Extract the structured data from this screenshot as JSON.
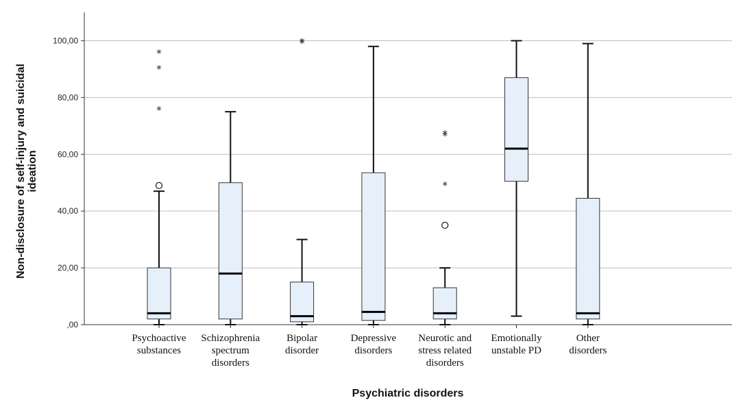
{
  "chart_data": {
    "type": "boxplot",
    "xlabel": "Psychiatric disorders",
    "ylabel": [
      "Non-disclosure of self-injury and suicidal",
      "ideation"
    ],
    "ylim": [
      0,
      110
    ],
    "yticks": [
      0,
      20,
      40,
      60,
      80,
      100
    ],
    "ytick_labels": [
      ",00",
      "20,00",
      "40,00",
      "60,00",
      "80,00",
      "100,00"
    ],
    "grid": "horizontal",
    "box_fill": "#e6f0fb",
    "box_stroke": "#333333",
    "gridline_color": "#bdbdbd",
    "categories": [
      {
        "label": [
          "Psychoactive",
          "substances"
        ],
        "whisker_low": 0,
        "q1": 2,
        "median": 4,
        "q3": 20,
        "whisker_high": 47,
        "outliers": [
          49
        ],
        "extremes": [
          76,
          90.5,
          96
        ]
      },
      {
        "label": [
          "Schizophrenia",
          "spectrum",
          "disorders"
        ],
        "whisker_low": 0,
        "q1": 2,
        "median": 18,
        "q3": 50,
        "whisker_high": 75,
        "outliers": [],
        "extremes": []
      },
      {
        "label": [
          "Bipolar",
          "disorder"
        ],
        "whisker_low": 0,
        "q1": 1,
        "median": 3,
        "q3": 15,
        "whisker_high": 30,
        "outliers": [],
        "extremes": [
          99.5,
          100
        ]
      },
      {
        "label": [
          "Depressive",
          "disorders"
        ],
        "whisker_low": 0,
        "q1": 1.5,
        "median": 4.5,
        "q3": 53.5,
        "whisker_high": 98,
        "outliers": [],
        "extremes": []
      },
      {
        "label": [
          "Neurotic and",
          "stress related",
          "disorders"
        ],
        "whisker_low": 0,
        "q1": 2,
        "median": 4,
        "q3": 13,
        "whisker_high": 20,
        "outliers": [
          35
        ],
        "extremes": [
          49.5,
          67,
          67.5
        ]
      },
      {
        "label": [
          "Emotionally",
          "unstable PD"
        ],
        "whisker_low": 3,
        "q1": 50.5,
        "median": 62,
        "q3": 87,
        "whisker_high": 100,
        "outliers": [],
        "extremes": []
      },
      {
        "label": [
          "Other",
          "disorders"
        ],
        "whisker_low": 0,
        "q1": 2,
        "median": 4,
        "q3": 44.5,
        "whisker_high": 99,
        "outliers": [],
        "extremes": []
      }
    ]
  }
}
